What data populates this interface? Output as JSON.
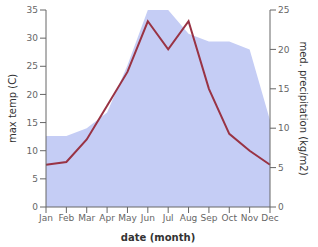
{
  "chart_data": {
    "type": "line",
    "categories": [
      "Jan",
      "Feb",
      "Mar",
      "Apr",
      "May",
      "Jun",
      "Jul",
      "Aug",
      "Sep",
      "Oct",
      "Nov",
      "Dec"
    ],
    "series": [
      {
        "type": "area",
        "color": "#c5cdf5",
        "axis": "y2",
        "values": [
          9.0,
          9.0,
          10.0,
          12.0,
          18.0,
          25.0,
          25.0,
          22.0,
          21.0,
          21.0,
          20.0,
          11.0
        ]
      },
      {
        "type": "line",
        "color": "#993344",
        "values": [
          7.5,
          8.0,
          12.0,
          18.0,
          24.0,
          33.0,
          28.0,
          33.0,
          21.0,
          13.0,
          10.0,
          7.5
        ]
      }
    ],
    "xlabel": "date (month)",
    "ylabel": "max temp (C)",
    "y2label": "med. precipitation (kg/m2)",
    "ylim": [
      0,
      35
    ],
    "yticks": [
      0,
      5,
      10,
      15,
      20,
      25,
      30,
      35
    ],
    "y2lim": [
      0,
      25
    ],
    "y2ticks": [
      0,
      5,
      10,
      15,
      20,
      25
    ]
  }
}
